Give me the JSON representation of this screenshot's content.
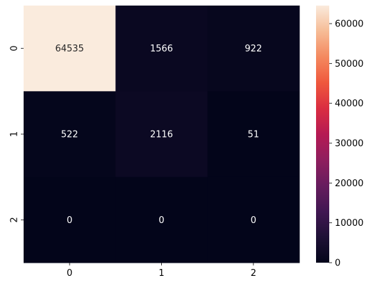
{
  "chart_data": {
    "type": "heatmap",
    "title": "",
    "xlabel": "",
    "ylabel": "",
    "x_tick_labels": [
      "0",
      "1",
      "2"
    ],
    "y_tick_labels": [
      "0",
      "1",
      "2"
    ],
    "values": [
      [
        64535,
        1566,
        922
      ],
      [
        522,
        2116,
        51
      ],
      [
        0,
        0,
        0
      ]
    ],
    "cell_labels": [
      [
        "64535",
        "1566",
        "922"
      ],
      [
        "522",
        "2116",
        "51"
      ],
      [
        "0",
        "0",
        "0"
      ]
    ],
    "colorbar": {
      "min": 0,
      "max": 64535,
      "ticks": [
        0,
        10000,
        20000,
        30000,
        40000,
        50000,
        60000
      ],
      "tick_labels": [
        "0",
        "10000",
        "20000",
        "30000",
        "40000",
        "50000",
        "60000"
      ],
      "colormap": "rocket",
      "low_color": "#03051a",
      "high_color": "#faebdd"
    }
  }
}
